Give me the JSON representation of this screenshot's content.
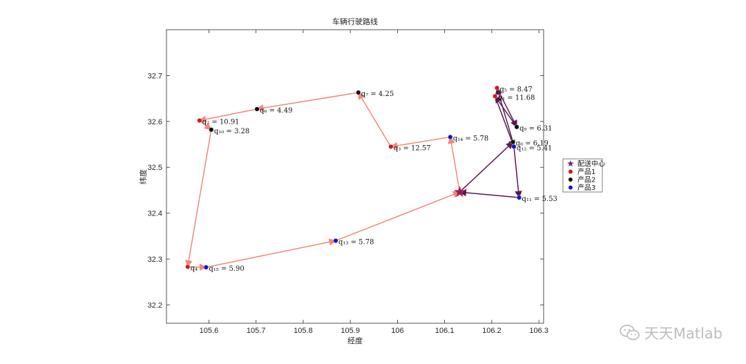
{
  "chart_data": {
    "type": "line",
    "title": "车辆行驶路线",
    "xlabel": "经度",
    "ylabel": "纬度",
    "xlim": [
      105.51,
      106.31
    ],
    "ylim": [
      32.16,
      32.8
    ],
    "xticks": [
      105.6,
      105.7,
      105.8,
      105.9,
      106,
      106.1,
      106.2,
      106.3
    ],
    "xtick_labels": [
      "105.6",
      "105.7",
      "105.8",
      "105.9",
      "106",
      "106.1",
      "106.2",
      "106.3"
    ],
    "yticks": [
      32.2,
      32.3,
      32.4,
      32.5,
      32.6,
      32.7
    ],
    "ytick_labels": [
      "32.2",
      "32.3",
      "32.4",
      "32.5",
      "32.6",
      "32.7"
    ],
    "grid": false,
    "legend_position": "outside-right",
    "depot": {
      "name": "配送中心",
      "x": 106.132,
      "y": 32.446,
      "color": "#7b1f7b"
    },
    "legend": [
      {
        "label": "配送中心",
        "marker": "star",
        "color": "#7b1f7b"
      },
      {
        "label": "产品1",
        "marker": "circle",
        "color": "#cc1c1c"
      },
      {
        "label": "产品2",
        "marker": "circle",
        "color": "#111111"
      },
      {
        "label": "产品3",
        "marker": "circle",
        "color": "#1515cc"
      }
    ],
    "points": [
      {
        "x": 106.211,
        "y": 32.673,
        "label": "q₅ = 8.47",
        "color": "#cc1c1c"
      },
      {
        "x": 106.207,
        "y": 32.655,
        "label": "q₁ = 11.68",
        "color": "#cc1c1c"
      },
      {
        "x": 106.253,
        "y": 32.588,
        "label": "q₉ = 6.31",
        "color": "#111111"
      },
      {
        "x": 106.245,
        "y": 32.555,
        "label": "q₈ = 6.19",
        "color": "#111111"
      },
      {
        "x": 106.247,
        "y": 32.545,
        "label": "q₁₂ = 5.41",
        "color": "#1515cc"
      },
      {
        "x": 106.258,
        "y": 32.434,
        "label": "q₁₁ = 5.53",
        "color": "#1515cc"
      },
      {
        "x": 106.112,
        "y": 32.566,
        "label": "q₁₄ = 5.78",
        "color": "#1515cc"
      },
      {
        "x": 105.986,
        "y": 32.545,
        "label": "q₃ = 12.57",
        "color": "#cc1c1c"
      },
      {
        "x": 105.917,
        "y": 32.663,
        "label": "q₇ = 4.25",
        "color": "#111111"
      },
      {
        "x": 105.702,
        "y": 32.627,
        "label": "q₆ = 4.49",
        "color": "#111111"
      },
      {
        "x": 105.58,
        "y": 32.602,
        "label": "q₂ = 10.91",
        "color": "#cc1c1c"
      },
      {
        "x": 105.605,
        "y": 32.582,
        "label": "q₁₀ = 3.28",
        "color": "#111111"
      },
      {
        "x": 105.555,
        "y": 32.283,
        "label": "q₄",
        "color": "#cc1c1c"
      },
      {
        "x": 105.594,
        "y": 32.282,
        "label": "q₁₅ = 5.90",
        "color": "#1515cc"
      },
      {
        "x": 105.869,
        "y": 32.34,
        "label": "q₁₃ = 5.78",
        "color": "#1515cc"
      }
    ],
    "routes": [
      {
        "color": "#5a1650",
        "path": [
          [
            106.132,
            32.446
          ],
          [
            106.245,
            32.555
          ],
          [
            106.211,
            32.673
          ],
          [
            106.253,
            32.588
          ],
          [
            106.207,
            32.655
          ],
          [
            106.247,
            32.545
          ],
          [
            106.258,
            32.434
          ],
          [
            106.132,
            32.446
          ]
        ]
      },
      {
        "color": "#f4857a",
        "path": [
          [
            106.132,
            32.446
          ],
          [
            106.112,
            32.566
          ],
          [
            105.986,
            32.545
          ],
          [
            105.917,
            32.663
          ],
          [
            105.702,
            32.627
          ],
          [
            105.58,
            32.602
          ],
          [
            105.605,
            32.582
          ],
          [
            105.555,
            32.283
          ],
          [
            105.594,
            32.282
          ],
          [
            105.869,
            32.34
          ],
          [
            106.132,
            32.446
          ]
        ]
      }
    ]
  },
  "watermark": {
    "text": "天天Matlab",
    "icon": "wechat-icon"
  }
}
